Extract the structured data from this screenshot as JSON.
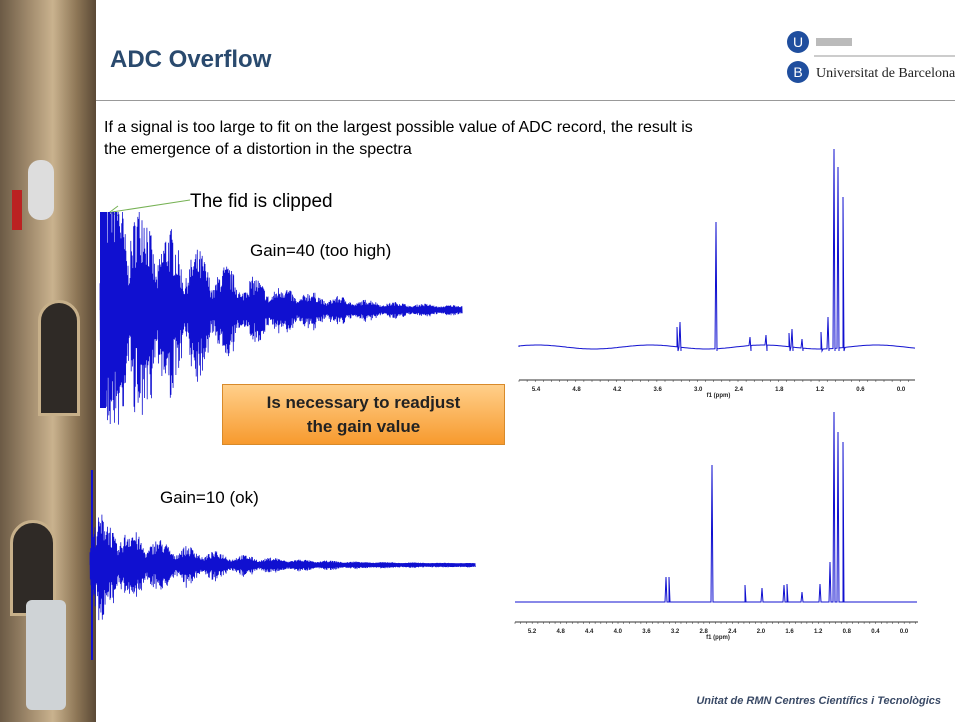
{
  "header": {
    "title": "ADC Overflow",
    "logo_text": "Universitat de Barcelona"
  },
  "body": {
    "lines": [
      "If a signal is too large to fit on the largest possible value of ADC record, the result is",
      "the emergence of a distortion in the spectra"
    ]
  },
  "annotations": {
    "clipped": "The fid is clipped",
    "gain_high": "Gain=40 (too high)",
    "gain_ok": "Gain=10 (ok)"
  },
  "callout": {
    "lines": [
      "Is necessary to readjust",
      "the gain value"
    ]
  },
  "spectra": [
    {
      "ticks": [
        "5.4",
        "4.8",
        "4.2",
        "3.6",
        "3.0",
        "2.4",
        "1.8",
        "1.2",
        "0.6",
        "0.0"
      ],
      "axis_label": "f1 (ppm)"
    },
    {
      "ticks": [
        "5.2",
        "4.8",
        "4.4",
        "4.0",
        "3.6",
        "3.2",
        "2.8",
        "2.4",
        "2.0",
        "1.6",
        "1.2",
        "0.8",
        "0.4",
        "0.0"
      ],
      "axis_label": "f1 (ppm)"
    }
  ],
  "footer": {
    "text": "Unitat de RMN  Centres Científics i Tecnològics"
  }
}
